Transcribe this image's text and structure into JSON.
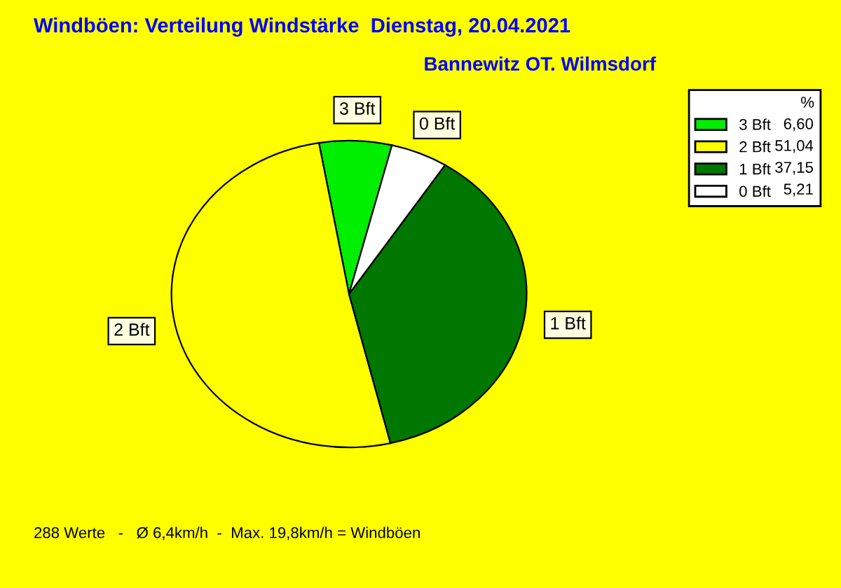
{
  "chart_data": {
    "type": "pie",
    "title": "Windböen: Verteilung Windstärke  Dienstag, 20.04.2021",
    "subtitle": "Bannewitz OT. Wilmsdorf",
    "categories": [
      "3 Bft",
      "2 Bft",
      "1 Bft",
      "0 Bft"
    ],
    "values": [
      6.6,
      51.04,
      37.15,
      5.21
    ],
    "value_labels": [
      "6,60",
      "51,04",
      "37,15",
      "5,21"
    ],
    "colors": [
      "#00ee00",
      "#ffff00",
      "#007700",
      "#ffffff"
    ],
    "legend_title": "%",
    "legend": "top right",
    "annotations": [
      "288 Werte   -   Ø 6,4km/h  -  Max. 19,8km/h = Windböen"
    ]
  }
}
